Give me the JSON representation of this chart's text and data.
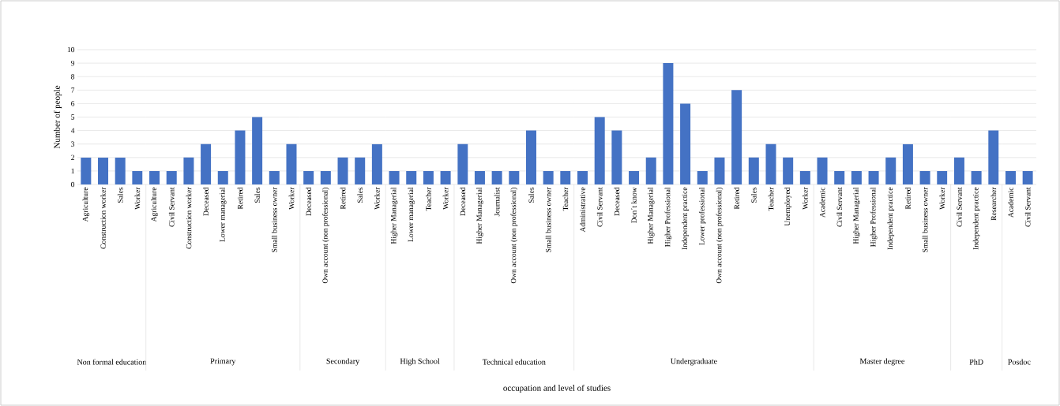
{
  "chart_data": [
    {
      "type": "bar",
      "xlabel": "Non formal education",
      "ylabel": "Number of people",
      "categories": [
        "Agriculture",
        "Construction worker",
        "Sales",
        "Worker"
      ],
      "values": [
        2,
        2,
        2,
        1
      ],
      "color": "#4472c4",
      "ylim": [
        0,
        10
      ],
      "yticks": [
        0,
        1,
        2,
        3,
        4,
        5,
        6,
        7,
        8,
        9,
        10
      ],
      "grid": "y",
      "annotations": [
        "occupation and level of studies"
      ]
    },
    {
      "type": "bar",
      "xlabel": "Primary",
      "categories": [
        "Agriculture",
        "Civil Servant",
        "Construction worker",
        "Deceased",
        "Lower managerial",
        "Retired",
        "Sales",
        "Small business owner",
        "Worker"
      ],
      "values": [
        1,
        1,
        2,
        3,
        1,
        4,
        5,
        1,
        3
      ],
      "color": "#4472c4",
      "ylim": [
        0,
        10
      ],
      "grid": "y",
      "tick_labels": "x"
    },
    {
      "type": "bar",
      "xlabel": "Secondary",
      "categories": [
        "Deceased",
        "Own account (non professional)",
        "Retired",
        "Sales",
        "Worker"
      ],
      "values": [
        1,
        1,
        2,
        2,
        3
      ],
      "color": "#4472c4",
      "ylim": [
        0,
        10
      ],
      "grid": "y",
      "tick_labels": "x"
    },
    {
      "type": "bar",
      "xlabel": "High School",
      "categories": [
        "Higher Managerial",
        "Lower managerial",
        "Teacher",
        "Worker"
      ],
      "values": [
        1,
        1,
        1,
        1
      ],
      "color": "#4472c4",
      "ylim": [
        0,
        10
      ],
      "grid": "y",
      "tick_labels": "x"
    },
    {
      "type": "bar",
      "xlabel": "Technical education",
      "categories": [
        "Deceased",
        "Higher Managerial",
        "Journalist",
        "Own account (non professional)",
        "Sales",
        "Small business owner",
        "Teacher"
      ],
      "values": [
        3,
        1,
        1,
        1,
        4,
        1,
        1
      ],
      "color": "#4472c4",
      "ylim": [
        0,
        10
      ],
      "grid": "y",
      "tick_labels": "x"
    },
    {
      "type": "bar",
      "xlabel": "Undergraduate",
      "categories": [
        "Administrative",
        "Civil Servant",
        "Deceased",
        "Don´t know",
        "Higher Managerial",
        "Higher Professional",
        "Independent practice",
        "Lower professional",
        "Own account (non professional)",
        "Retired",
        "Sales",
        "Teacher",
        "Unemployed",
        "Worker"
      ],
      "values": [
        1,
        5,
        4,
        1,
        2,
        9,
        6,
        1,
        2,
        7,
        2,
        3,
        2,
        1
      ],
      "color": "#4472c4",
      "ylim": [
        0,
        10
      ],
      "grid": "y",
      "tick_labels": "x"
    },
    {
      "type": "bar",
      "xlabel": "Master degree",
      "categories": [
        "Academic",
        "Civil Servant",
        "Higher Managerial",
        "Higher Professional",
        "Independent practice",
        "Retired",
        "Small business owner",
        "Worker"
      ],
      "values": [
        2,
        1,
        1,
        1,
        2,
        3,
        1,
        1
      ],
      "color": "#4472c4",
      "ylim": [
        0,
        10
      ],
      "grid": "y",
      "tick_labels": "x"
    },
    {
      "type": "bar",
      "xlabel": "PhD",
      "categories": [
        "Civil Servant",
        "Independent practice",
        "Researcher"
      ],
      "values": [
        2,
        1,
        4
      ],
      "color": "#4472c4",
      "ylim": [
        0,
        10
      ],
      "grid": "y",
      "tick_labels": "x"
    },
    {
      "type": "bar",
      "xlabel": "Posdoc",
      "categories": [
        "Academic",
        "Civil Servant"
      ],
      "values": [
        1,
        1
      ],
      "color": "#4472c4",
      "ylim": [
        0,
        10
      ],
      "grid": "y",
      "tick_labels": "x"
    }
  ]
}
